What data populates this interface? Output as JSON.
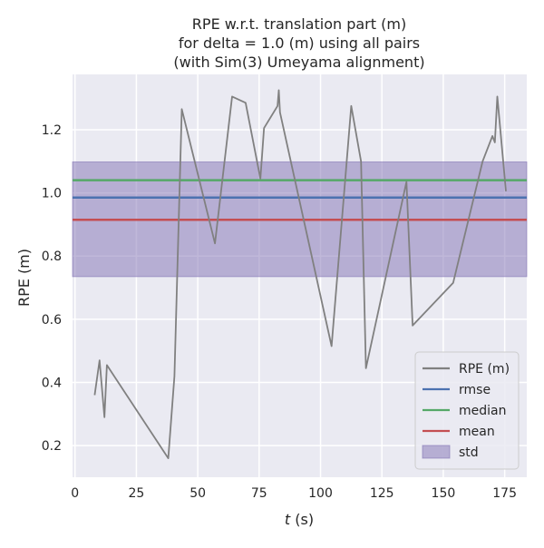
{
  "chart_data": {
    "type": "line",
    "title_lines": [
      "RPE w.r.t. translation part (m)",
      "for delta = 1.0 (m) using all pairs",
      "(with Sim(3) Umeyama alignment)"
    ],
    "xlabel_var": "t",
    "xlabel_unit": " (s)",
    "ylabel": "RPE (m)",
    "xlim": [
      -1,
      184
    ],
    "ylim": [
      0.1,
      1.375
    ],
    "x_ticks": [
      0,
      25,
      50,
      75,
      100,
      125,
      150,
      175
    ],
    "y_ticks": [
      0.2,
      0.4,
      0.6,
      0.8,
      1.0,
      1.2
    ],
    "grid": true,
    "legend_position": "lower-right",
    "series": [
      {
        "name": "RPE (m)",
        "color": "#808080",
        "x": [
          8,
          10,
          12,
          13,
          38,
          40.5,
          43.5,
          57,
          64,
          69.5,
          75.5,
          77,
          82.5,
          83,
          83.5,
          104.5,
          112.5,
          116.5,
          118.5,
          135,
          137.5,
          154,
          166,
          170,
          171,
          172,
          175.5
        ],
        "y": [
          0.36,
          0.47,
          0.29,
          0.455,
          0.16,
          0.42,
          1.265,
          0.84,
          1.305,
          1.285,
          1.045,
          1.205,
          1.275,
          1.325,
          1.255,
          0.515,
          1.275,
          1.1,
          0.445,
          1.035,
          0.58,
          0.715,
          1.1,
          1.18,
          1.16,
          1.305,
          1.005
        ]
      }
    ],
    "stats": {
      "rmse": {
        "value": 0.985,
        "color": "#4c72b0"
      },
      "median": {
        "value": 1.04,
        "color": "#55a868"
      },
      "mean": {
        "value": 0.915,
        "color": "#c44e52"
      },
      "std": {
        "low": 0.735,
        "high": 1.098,
        "color": "#8172b3"
      }
    },
    "legend": [
      "RPE (m)",
      "rmse",
      "median",
      "mean",
      "std"
    ]
  }
}
